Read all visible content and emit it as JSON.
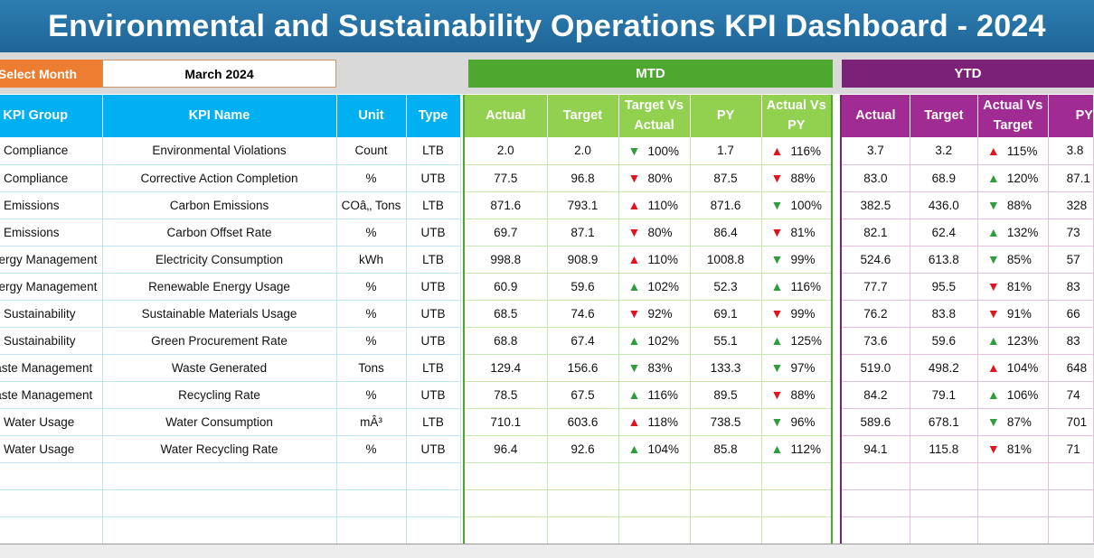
{
  "title": "Environmental and Sustainability Operations KPI Dashboard - 2024",
  "select_month": {
    "label": "Select Month",
    "value": "March 2024"
  },
  "sections": {
    "mtd": "MTD",
    "ytd": "YTD"
  },
  "columns": {
    "left": [
      "KPI Group",
      "KPI Name",
      "Unit",
      "Type"
    ],
    "mtd": [
      "Actual",
      "Target",
      "Target Vs Actual",
      "PY",
      "Actual Vs PY"
    ],
    "ytd": [
      "Actual",
      "Target",
      "Actual Vs Target",
      "PY"
    ]
  },
  "colors": {
    "up_arrow": "#2e9e3c",
    "down_arrow": "#e0141e",
    "mtd": "#4ea72e",
    "ytd": "#7b2278",
    "header_blue": "#00b0f0",
    "title_bar": "#1f6596",
    "select_month": "#ed7d31"
  },
  "rows": [
    {
      "group": "Compliance",
      "name": "Environmental Violations",
      "unit": "Count",
      "type": "LTB",
      "mtd_actual": "2.0",
      "mtd_target": "2.0",
      "mtd_tva": "100%",
      "mtd_tva_dir": "down",
      "mtd_py": "1.7",
      "mtd_avp": "116%",
      "mtd_avp_dir": "up-bad",
      "ytd_actual": "3.7",
      "ytd_target": "3.2",
      "ytd_avt": "115%",
      "ytd_avt_dir": "up-bad",
      "ytd_py": "3.8"
    },
    {
      "group": "Compliance",
      "name": "Corrective Action Completion",
      "unit": "%",
      "type": "UTB",
      "mtd_actual": "77.5",
      "mtd_target": "96.8",
      "mtd_tva": "80%",
      "mtd_tva_dir": "down-bad",
      "mtd_py": "87.5",
      "mtd_avp": "88%",
      "mtd_avp_dir": "down-bad",
      "ytd_actual": "83.0",
      "ytd_target": "68.9",
      "ytd_avt": "120%",
      "ytd_avt_dir": "up",
      "ytd_py": "87.1"
    },
    {
      "group": "Emissions",
      "name": "Carbon Emissions",
      "unit": "COâ‚‚ Tons",
      "type": "LTB",
      "mtd_actual": "871.6",
      "mtd_target": "793.1",
      "mtd_tva": "110%",
      "mtd_tva_dir": "up-bad",
      "mtd_py": "871.6",
      "mtd_avp": "100%",
      "mtd_avp_dir": "down",
      "ytd_actual": "382.5",
      "ytd_target": "436.0",
      "ytd_avt": "88%",
      "ytd_avt_dir": "down",
      "ytd_py": "328"
    },
    {
      "group": "Emissions",
      "name": "Carbon Offset Rate",
      "unit": "%",
      "type": "UTB",
      "mtd_actual": "69.7",
      "mtd_target": "87.1",
      "mtd_tva": "80%",
      "mtd_tva_dir": "down-bad",
      "mtd_py": "86.4",
      "mtd_avp": "81%",
      "mtd_avp_dir": "down-bad",
      "ytd_actual": "82.1",
      "ytd_target": "62.4",
      "ytd_avt": "132%",
      "ytd_avt_dir": "up",
      "ytd_py": "73"
    },
    {
      "group": "Energy Management",
      "name": "Electricity Consumption",
      "unit": "kWh",
      "type": "LTB",
      "mtd_actual": "998.8",
      "mtd_target": "908.9",
      "mtd_tva": "110%",
      "mtd_tva_dir": "up-bad",
      "mtd_py": "1008.8",
      "mtd_avp": "99%",
      "mtd_avp_dir": "down",
      "ytd_actual": "524.6",
      "ytd_target": "613.8",
      "ytd_avt": "85%",
      "ytd_avt_dir": "down",
      "ytd_py": "57"
    },
    {
      "group": "Energy Management",
      "name": "Renewable Energy Usage",
      "unit": "%",
      "type": "UTB",
      "mtd_actual": "60.9",
      "mtd_target": "59.6",
      "mtd_tva": "102%",
      "mtd_tva_dir": "up",
      "mtd_py": "52.3",
      "mtd_avp": "116%",
      "mtd_avp_dir": "up",
      "ytd_actual": "77.7",
      "ytd_target": "95.5",
      "ytd_avt": "81%",
      "ytd_avt_dir": "down-bad",
      "ytd_py": "83"
    },
    {
      "group": "Sustainability",
      "name": "Sustainable Materials Usage",
      "unit": "%",
      "type": "UTB",
      "mtd_actual": "68.5",
      "mtd_target": "74.6",
      "mtd_tva": "92%",
      "mtd_tva_dir": "down-bad",
      "mtd_py": "69.1",
      "mtd_avp": "99%",
      "mtd_avp_dir": "down-bad",
      "ytd_actual": "76.2",
      "ytd_target": "83.8",
      "ytd_avt": "91%",
      "ytd_avt_dir": "down-bad",
      "ytd_py": "66"
    },
    {
      "group": "Sustainability",
      "name": "Green Procurement Rate",
      "unit": "%",
      "type": "UTB",
      "mtd_actual": "68.8",
      "mtd_target": "67.4",
      "mtd_tva": "102%",
      "mtd_tva_dir": "up",
      "mtd_py": "55.1",
      "mtd_avp": "125%",
      "mtd_avp_dir": "up",
      "ytd_actual": "73.6",
      "ytd_target": "59.6",
      "ytd_avt": "123%",
      "ytd_avt_dir": "up",
      "ytd_py": "83"
    },
    {
      "group": "Waste Management",
      "name": "Waste Generated",
      "unit": "Tons",
      "type": "LTB",
      "mtd_actual": "129.4",
      "mtd_target": "156.6",
      "mtd_tva": "83%",
      "mtd_tva_dir": "down",
      "mtd_py": "133.3",
      "mtd_avp": "97%",
      "mtd_avp_dir": "down",
      "ytd_actual": "519.0",
      "ytd_target": "498.2",
      "ytd_avt": "104%",
      "ytd_avt_dir": "up-bad",
      "ytd_py": "648"
    },
    {
      "group": "Waste Management",
      "name": "Recycling Rate",
      "unit": "%",
      "type": "UTB",
      "mtd_actual": "78.5",
      "mtd_target": "67.5",
      "mtd_tva": "116%",
      "mtd_tva_dir": "up",
      "mtd_py": "89.5",
      "mtd_avp": "88%",
      "mtd_avp_dir": "down-bad",
      "ytd_actual": "84.2",
      "ytd_target": "79.1",
      "ytd_avt": "106%",
      "ytd_avt_dir": "up",
      "ytd_py": "74"
    },
    {
      "group": "Water Usage",
      "name": "Water Consumption",
      "unit": "mÂ³",
      "type": "LTB",
      "mtd_actual": "710.1",
      "mtd_target": "603.6",
      "mtd_tva": "118%",
      "mtd_tva_dir": "up-bad",
      "mtd_py": "738.5",
      "mtd_avp": "96%",
      "mtd_avp_dir": "down",
      "ytd_actual": "589.6",
      "ytd_target": "678.1",
      "ytd_avt": "87%",
      "ytd_avt_dir": "down",
      "ytd_py": "701"
    },
    {
      "group": "Water Usage",
      "name": "Water Recycling Rate",
      "unit": "%",
      "type": "UTB",
      "mtd_actual": "96.4",
      "mtd_target": "92.6",
      "mtd_tva": "104%",
      "mtd_tva_dir": "up",
      "mtd_py": "85.8",
      "mtd_avp": "112%",
      "mtd_avp_dir": "up",
      "ytd_actual": "94.1",
      "ytd_target": "115.8",
      "ytd_avt": "81%",
      "ytd_avt_dir": "down-bad",
      "ytd_py": "71"
    }
  ]
}
